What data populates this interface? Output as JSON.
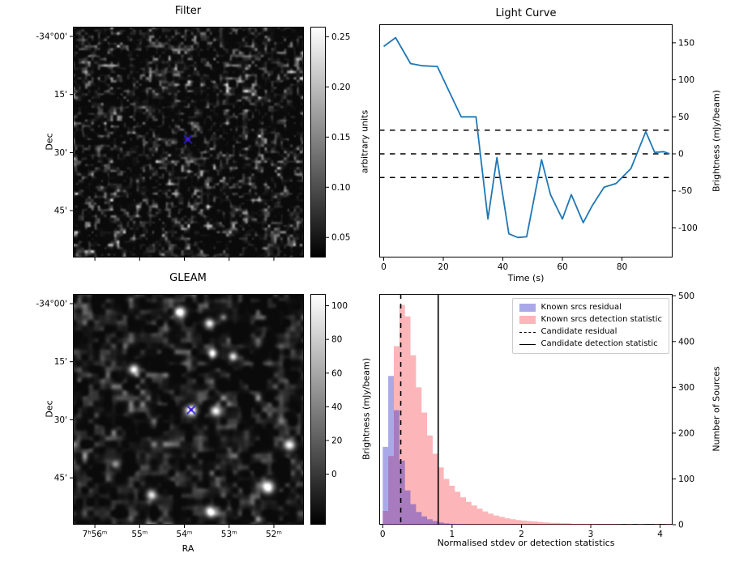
{
  "figure": {
    "background": "#ffffff"
  },
  "chart_data": [
    {
      "type": "heatmap",
      "title": "Filter",
      "ylabel": "Dec",
      "ytick_labels": [
        "-34°00'",
        "15'",
        "30'",
        "45'"
      ],
      "colorbar_label": "arbitrary units",
      "colorbar_ticks": [
        0.05,
        0.1,
        0.15,
        0.2,
        0.25
      ],
      "colorbar_tick_labels": [
        "0.05",
        "0.10",
        "0.15",
        "0.20",
        "0.25"
      ],
      "colorbar_range": [
        0.03,
        0.26
      ],
      "description": "grayscale filtered sky map, mostly dark speckle noise with candidate marker near centre",
      "marker": {
        "x_frac": 0.498,
        "y_frac": 0.488,
        "cross_color": "#2020dd",
        "dot_color": "#ff00ff"
      }
    },
    {
      "type": "line",
      "title": "Light Curve",
      "xlabel": "Time (s)",
      "ylabel": "Brightness (mJy/beam)",
      "xlim": [
        -1.5,
        97
      ],
      "ylim": [
        -140,
        175
      ],
      "xticks": [
        0,
        20,
        40,
        60,
        80
      ],
      "yticks": [
        -100,
        -50,
        0,
        50,
        100,
        150
      ],
      "line_color": "#1f77b4",
      "x": [
        0,
        4,
        9,
        13,
        18,
        26,
        31,
        35,
        38,
        42,
        45,
        48,
        53,
        56,
        60,
        63,
        67,
        70,
        74,
        78,
        83,
        88,
        91,
        94,
        96
      ],
      "y": [
        145,
        157,
        122,
        119,
        118,
        50,
        50,
        -88,
        -5,
        -108,
        -113,
        -112,
        -8,
        -55,
        -88,
        -55,
        -93,
        -70,
        -45,
        -40,
        -20,
        30,
        2,
        3,
        0
      ],
      "threshold_lines": [
        32,
        0,
        -32
      ]
    },
    {
      "type": "heatmap",
      "title": "GLEAM",
      "xlabel": "RA",
      "ylabel": "Dec",
      "xtick_labels": [
        "7ʰ56ᵐ",
        "55ᵐ",
        "54ᵐ",
        "53ᵐ",
        "52ᵐ"
      ],
      "ytick_labels": [
        "-34°00'",
        "15'",
        "30'",
        "45'"
      ],
      "colorbar_label": "Brightness (mJy/beam)",
      "colorbar_ticks": [
        0,
        20,
        40,
        60,
        80,
        100
      ],
      "colorbar_tick_labels": [
        "0",
        "20",
        "40",
        "60",
        "80",
        "100"
      ],
      "colorbar_range": [
        -30,
        107
      ],
      "description": "grayscale GLEAM reference image with bright point sources and candidate marker near centre",
      "marker": {
        "x_frac": 0.512,
        "y_frac": 0.502,
        "cross_color": "#2020dd",
        "dot_color": "#ff00ff"
      },
      "sources": [
        [
          0.464,
          0.077,
          1.0,
          4.5
        ],
        [
          0.589,
          0.126,
          0.85,
          4.0
        ],
        [
          0.604,
          0.256,
          0.7,
          3.6
        ],
        [
          0.691,
          0.27,
          0.78,
          3.6
        ],
        [
          0.263,
          0.326,
          0.95,
          4.2
        ],
        [
          0.512,
          0.502,
          1.0,
          4.6
        ],
        [
          0.618,
          0.505,
          0.9,
          4.2
        ],
        [
          0.937,
          0.653,
          0.95,
          4.6
        ],
        [
          0.842,
          0.835,
          1.1,
          5.2
        ],
        [
          0.337,
          0.87,
          0.8,
          4.0
        ],
        [
          0.593,
          0.94,
          0.9,
          4.4
        ],
        [
          0.182,
          0.737,
          0.5,
          3.4
        ]
      ]
    },
    {
      "type": "bar",
      "title": "",
      "xlabel": "Normalised stdev or detection statistics",
      "ylabel": "Number of Sources",
      "xlim": [
        -0.05,
        4.18
      ],
      "ylim": [
        0,
        504
      ],
      "xticks": [
        0,
        1,
        2,
        3,
        4
      ],
      "yticks": [
        0,
        100,
        200,
        300,
        400,
        500
      ],
      "bin_start": 0,
      "bin_width": 0.08,
      "series": [
        {
          "name": "Known srcs residual",
          "color": "rgba(30,30,200,0.38)",
          "values": [
            170,
            325,
            250,
            140,
            75,
            45,
            28,
            18,
            12,
            8,
            5,
            3,
            2,
            1,
            1,
            0,
            0,
            0,
            0,
            0,
            0,
            0,
            0,
            0,
            0,
            0,
            0,
            0,
            0,
            0,
            0,
            0,
            0,
            0,
            0,
            0,
            0,
            0,
            0,
            0,
            0,
            0,
            0,
            0,
            0,
            0,
            0,
            0,
            0,
            0,
            0,
            0
          ]
        },
        {
          "name": "Known srcs detection statistic",
          "color": "rgba(248,60,70,0.38)",
          "values": [
            30,
            150,
            390,
            480,
            455,
            370,
            300,
            245,
            195,
            155,
            125,
            100,
            85,
            72,
            60,
            50,
            42,
            35,
            29,
            24,
            20,
            17,
            14,
            12,
            10,
            9,
            8,
            7,
            6,
            5,
            4,
            4,
            3,
            3,
            2,
            2,
            2,
            2,
            1,
            1,
            1,
            1,
            1,
            0,
            1,
            0,
            1,
            0,
            0,
            1,
            0,
            1
          ]
        }
      ],
      "vlines": [
        {
          "label": "Candidate residual",
          "x": 0.26,
          "style": "dashed",
          "color": "#000000"
        },
        {
          "label": "Candidate detection statistic",
          "x": 0.8,
          "style": "solid",
          "color": "#000000"
        }
      ],
      "legend_position": "upper right"
    }
  ]
}
